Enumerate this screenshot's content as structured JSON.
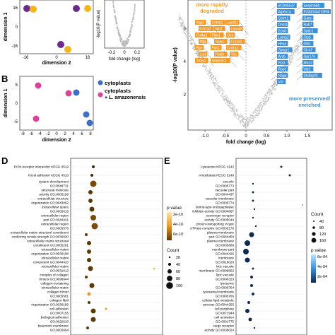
{
  "panels": {
    "A": {
      "xlabel": "dimension 2",
      "ylabel": "dimension 1",
      "yticks": [
        "16",
        "0",
        "-16"
      ],
      "xticks": [
        "-16",
        "0",
        "16"
      ]
    },
    "A2": {
      "xlabel": "fold change (log)",
      "ylabel": "-log10(P value)",
      "xticks": [
        "-0.2",
        "0",
        "0.2"
      ]
    },
    "B": {
      "label": "B",
      "xlabel": "dimension 2",
      "ylabel": "dimension 1",
      "yticks": [
        "5",
        "0",
        "-5"
      ],
      "xticks": [
        "-8",
        "-6",
        "-4",
        "-2",
        "0",
        "2",
        "4",
        "6",
        "8"
      ],
      "legend": [
        {
          "label": "cytoplasts",
          "color": "#3d6fc4"
        },
        {
          "label": "cytoplasts",
          "color": "#d9449a"
        },
        {
          "label": "+ L. amazonensis",
          "color": ""
        }
      ]
    },
    "C": {
      "xlabel": "fold change (log)",
      "ylabel": "-log10(P value)",
      "yticks": [
        "6",
        "4",
        "2"
      ],
      "xticks": [
        "-1.0",
        "-0.5",
        "0",
        "0.5",
        "1.0",
        "1.5"
      ],
      "degraded_text": "more rapidly\ndegraded",
      "preserved_text": "more preserved/\nenriched",
      "orange_genes": [
        "Aqp1",
        "Col4a1",
        "Lamb1",
        "Col1a2",
        "Nid1",
        "Lama5",
        "Col4a2",
        "Fbln1",
        "Dcn",
        "Mgp",
        "Sparc",
        "Col3a1",
        "Bgn",
        "Fbn1",
        "Col1a1",
        "Lum",
        "Postn",
        "Tnc",
        "Thbs1",
        "Serpinh1"
      ],
      "blue_genes": [
        "BC005537",
        "Serpinb6b",
        "Atp6v1a",
        "E330034G19Rik",
        "Gstm1",
        "Gatm",
        "Dnm1",
        "Rab7",
        "Eps8",
        "Sptlc1",
        "Lamp2",
        "Ctsb",
        "Hexa",
        "Glb1",
        "Syngr1",
        "Clcn7",
        "Arsb",
        "Gpr176",
        "Ppt1",
        "Mnn2",
        "Rap1",
        "Vat1",
        "Naga",
        "Sh3bgrl3",
        "Vsl"
      ]
    },
    "D": {
      "label": "D",
      "terms": [
        "ECM-receptor interaction KEGG 4512",
        "Focal adhesion KEGG 4510",
        "system development\nGO:0048731",
        "structural molecule\nactivity GO:0005198",
        "extracellular structure\norganization GO:0043062",
        "extracellular space\nGO:0005615",
        "extracellular region\npart GO:0044421",
        "extracellular region\nGO:0005576",
        "extracellular matrix structural constituent\nconferring tensile strength GO:0030020",
        "extracellular matrix structural\nconstituent GO:0005201",
        "extracellular matrix\norganization GO:0030198",
        "extracellular matrix\ncomponent GO:0044420",
        "extracellular matrix\nGO:0031012",
        "complex of collagen\ntrimers GO:0098644",
        "collagen-containing\nextracellular matrix",
        "collagen trimer\nGO:0005581",
        "collagen fibril\norganization GO:0030199",
        "cell adhesion\nGO:0007155",
        "biological adhesion\nGO:0022610",
        "basement membrane\nGO:0005604"
      ],
      "pvalue_title": "p value",
      "pvalue_ticks": [
        "2e-10",
        "4e-10",
        "6e-10"
      ],
      "count_title": "Count",
      "count_ticks": [
        "20",
        "40",
        "60",
        "80",
        "100"
      ]
    },
    "E": {
      "label": "E",
      "terms": [
        "Lysosome KEGG 4142",
        "Amoebiasis KEGG 5146",
        "vacuole\nGO:0005773",
        "vacuolar part\nGO:0044437",
        "vacuolar membrane\nGO:0005774",
        "serine-type endopeptidase\ninhibitor activity GO:0004867",
        "scavenger receptor\nactivity GO:0005044",
        "proton-transporting V-type\nATPase complex GO:0033176",
        "plasma membrane\npart GO:0044459",
        "plasma membrane\nGO:0005886",
        "membrane part\nGO:0044425",
        "membrane\nGO:0016020",
        "lytic vacuole\nmembrane GO:0098852",
        "lytic vacuole\nGO:0000323",
        "lysosome\nGO:0005764",
        "lysosomal membrane\nGO:0005765",
        "cellular lipid metabolic\nprocess GO:0044255",
        "cell periphery\nGO:0071944",
        "cell activation\nGO:0001775",
        "cargo receptor\nactivity GO:0038024"
      ],
      "count_title": "Count",
      "count_ticks": [
        "40",
        "80",
        "120",
        "160"
      ],
      "pvalue_title": "p value",
      "pvalue_ticks": [
        "6e-04",
        "4e-04",
        "2e-04"
      ]
    }
  },
  "colors": {
    "orange": "#f39a2d",
    "blue": "#3d8fd6",
    "pink": "#d9449a",
    "yellow": "#f5b51b",
    "purple": "#6a2b8a",
    "grey": "#bdbdbd"
  }
}
